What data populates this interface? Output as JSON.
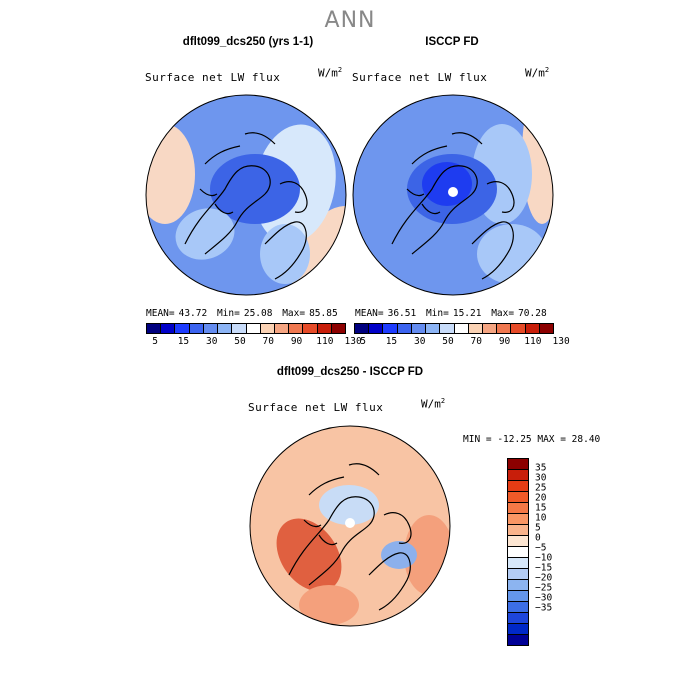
{
  "page_title": "ANN",
  "panels": {
    "left": {
      "title": "dflt099_dcs250 (yrs 1-1)",
      "variable": "Surface net LW flux",
      "units": "W/m",
      "units_exp": "2",
      "mean_label": "MEAN=",
      "mean": "43.72",
      "min_label": "Min=",
      "min": "25.08",
      "max_label": "Max=",
      "max": "85.85"
    },
    "right": {
      "title": "ISCCP FD",
      "variable": "Surface net LW flux",
      "units": "W/m",
      "units_exp": "2",
      "mean_label": "MEAN=",
      "mean": "36.51",
      "min_label": "Min=",
      "min": "15.21",
      "max_label": "Max=",
      "max": "70.28"
    },
    "diff": {
      "title": "dflt099_dcs250 - ISCCP FD",
      "variable": "Surface net LW flux",
      "units": "W/m",
      "units_exp": "2",
      "minmax": "MIN = -12.25 MAX =  28.40"
    }
  },
  "colorbar_abs": {
    "colors": [
      "#00007f",
      "#0000c8",
      "#1e3cff",
      "#3c64f0",
      "#648cf0",
      "#8cb4f5",
      "#c8dcfa",
      "#ffffff",
      "#fad2b4",
      "#f5a582",
      "#f07850",
      "#e64b28",
      "#c81e0a",
      "#8c0000"
    ],
    "tick_labels": [
      "5",
      "15",
      "30",
      "50",
      "70",
      "90",
      "110",
      "130"
    ]
  },
  "colorbar_diff": {
    "colors": [
      "#8c0000",
      "#c81e0a",
      "#e63c14",
      "#f05a28",
      "#f57846",
      "#fa9664",
      "#fab48c",
      "#fde6d2",
      "#ffffff",
      "#d7e8fa",
      "#b4cdf5",
      "#8cb4f0",
      "#6496eb",
      "#3c6ee6",
      "#1e46dc",
      "#0028c8",
      "#000096"
    ],
    "tick_labels": [
      "35",
      "30",
      "25",
      "20",
      "15",
      "10",
      "5",
      "0",
      "−5",
      "−10",
      "−15",
      "−20",
      "−25",
      "−30",
      "−35"
    ]
  },
  "map_colors": {
    "abs_base": "#6e96ee",
    "abs_dark": "#3c64e6",
    "abs_light": "#a8c8f8",
    "abs_pale": "#d7e8fb",
    "abs_warm": "#f8d8c4",
    "abs_pole": "#1e3cf0",
    "diff_base": "#f8c4a4",
    "diff_mid": "#f4a07c",
    "diff_hot": "#e06040",
    "diff_cool": "#c8dcf6",
    "diff_cold": "#8cb0ec"
  }
}
